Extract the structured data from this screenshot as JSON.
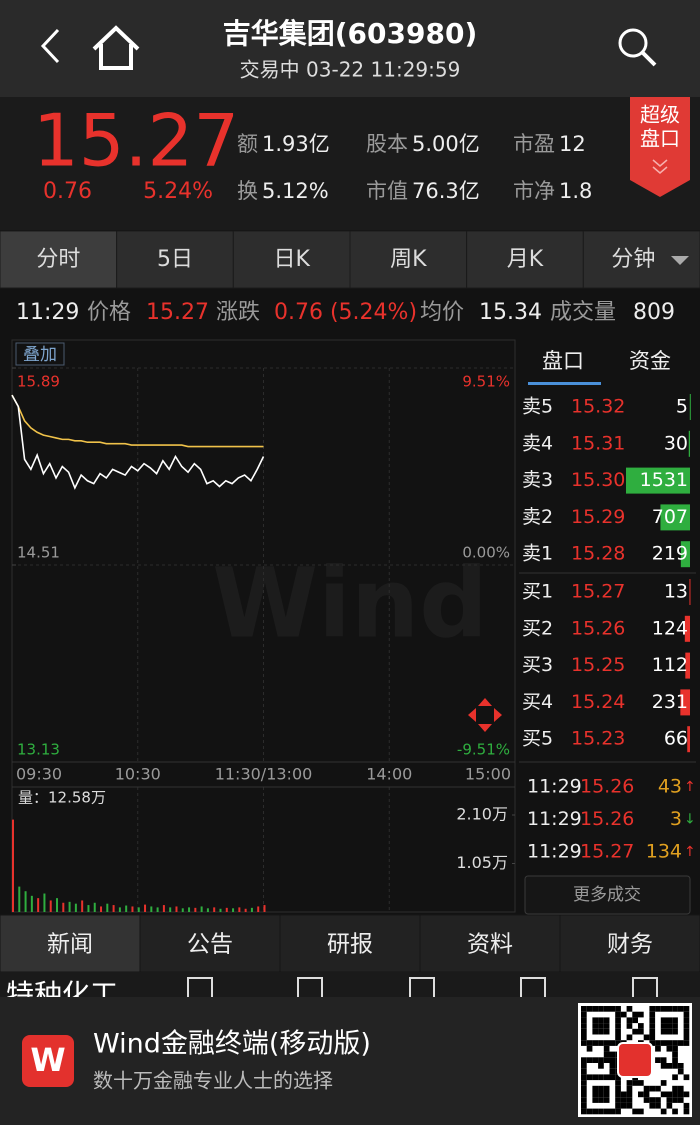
{
  "header": {
    "title": "吉华集团(603980)",
    "status": "交易中 03-22 11:29:59"
  },
  "quote": {
    "price": "15.27",
    "change": "0.76",
    "change_pct": "5.24%",
    "stats": [
      {
        "label": "额",
        "value": "1.93亿"
      },
      {
        "label": "股本",
        "value": "5.00亿"
      },
      {
        "label": "市盈",
        "value": "12"
      },
      {
        "label": "换",
        "value": "5.12%"
      },
      {
        "label": "市值",
        "value": "76.3亿"
      },
      {
        "label": "市净",
        "value": "1.8"
      }
    ],
    "badge": [
      "超级",
      "盘口"
    ]
  },
  "period_tabs": [
    "分时",
    "5日",
    "日K",
    "周K",
    "月K",
    "分钟"
  ],
  "info_bar": {
    "time": "11:29",
    "items": [
      {
        "label": "价格",
        "value": "15.27"
      },
      {
        "label": "涨跌",
        "value": "0.76 (5.24%)"
      },
      {
        "label": "均价",
        "value": "15.34"
      },
      {
        "label": "成交量",
        "value": "809"
      }
    ]
  },
  "chart_data": {
    "type": "line",
    "overlay_button": "叠加",
    "watermark": "Wind",
    "ylim": [
      13.13,
      15.89
    ],
    "yticks": [
      15.89,
      14.51,
      13.13
    ],
    "y2lim": [
      -9.51,
      9.51
    ],
    "y2ticks": [
      {
        "value": 9.51,
        "label": "9.51%"
      },
      {
        "value": 0,
        "label": "0.00%"
      },
      {
        "value": -9.51,
        "label": "-9.51%"
      }
    ],
    "x_labels": [
      "09:30",
      "10:30",
      "11:30/13:00",
      "14:00",
      "15:00"
    ],
    "price": {
      "color": "#ffffff",
      "values": [
        15.7,
        15.62,
        15.25,
        15.18,
        15.28,
        15.15,
        15.22,
        15.12,
        15.2,
        15.16,
        15.05,
        15.14,
        15.1,
        15.08,
        15.15,
        15.12,
        15.18,
        15.16,
        15.14,
        15.2,
        15.17,
        15.22,
        15.19,
        15.15,
        15.24,
        15.18,
        15.27,
        15.2,
        15.16,
        15.22,
        15.18,
        15.08,
        15.1,
        15.06,
        15.1,
        15.08,
        15.12,
        15.14,
        15.1,
        15.18,
        15.27
      ]
    },
    "avg": {
      "color": "#f0c24a",
      "values": [
        15.7,
        15.62,
        15.52,
        15.47,
        15.44,
        15.42,
        15.41,
        15.4,
        15.39,
        15.39,
        15.38,
        15.38,
        15.37,
        15.37,
        15.37,
        15.36,
        15.36,
        15.36,
        15.36,
        15.35,
        15.35,
        15.35,
        15.35,
        15.35,
        15.35,
        15.35,
        15.35,
        15.35,
        15.34,
        15.34,
        15.34,
        15.34,
        15.34,
        15.34,
        15.34,
        15.34,
        15.34,
        15.34,
        15.34,
        15.34,
        15.34
      ]
    },
    "volume": {
      "label": "量：12.58万",
      "ylim": [
        0,
        2.1
      ],
      "yticks": [
        {
          "value": 2.1,
          "label": "2.10万"
        },
        {
          "value": 1.05,
          "label": "1.05万"
        }
      ],
      "values": [
        2.0,
        0.55,
        0.45,
        0.35,
        0.3,
        0.4,
        0.25,
        0.3,
        0.2,
        0.22,
        0.18,
        0.25,
        0.15,
        0.2,
        0.12,
        0.18,
        0.15,
        0.1,
        0.14,
        0.12,
        0.1,
        0.16,
        0.12,
        0.1,
        0.15,
        0.1,
        0.12,
        0.08,
        0.1,
        0.09,
        0.12,
        0.08,
        0.1,
        0.07,
        0.09,
        0.08,
        0.1,
        0.07,
        0.09,
        0.12,
        0.15
      ]
    }
  },
  "order_book": {
    "tabs": [
      "盘口",
      "资金"
    ],
    "asks": [
      {
        "label": "卖5",
        "price": "15.32",
        "volume": 5
      },
      {
        "label": "卖4",
        "price": "15.31",
        "volume": 30
      },
      {
        "label": "卖3",
        "price": "15.30",
        "volume": 1531
      },
      {
        "label": "卖2",
        "price": "15.29",
        "volume": 707
      },
      {
        "label": "卖1",
        "price": "15.28",
        "volume": 219
      }
    ],
    "bids": [
      {
        "label": "买1",
        "price": "15.27",
        "volume": 13
      },
      {
        "label": "买2",
        "price": "15.26",
        "volume": 124
      },
      {
        "label": "买3",
        "price": "15.25",
        "volume": 112
      },
      {
        "label": "买4",
        "price": "15.24",
        "volume": 231
      },
      {
        "label": "买5",
        "price": "15.23",
        "volume": 66
      }
    ]
  },
  "trades": {
    "rows": [
      {
        "time": "11:29",
        "price": "15.26",
        "volume": 43,
        "arrow": "↑"
      },
      {
        "time": "11:29",
        "price": "15.26",
        "volume": 3,
        "arrow": "↓"
      },
      {
        "time": "11:29",
        "price": "15.27",
        "volume": 134,
        "arrow": "↑"
      }
    ],
    "more": "更多成交"
  },
  "bottom_tabs": [
    "新闻",
    "公告",
    "研报",
    "资料",
    "财务"
  ],
  "sector_tag": "特种化工",
  "banner": {
    "logo": "W",
    "title": "Wind金融终端(移动版)",
    "subtitle": "数十万金融专业人士的选择"
  }
}
